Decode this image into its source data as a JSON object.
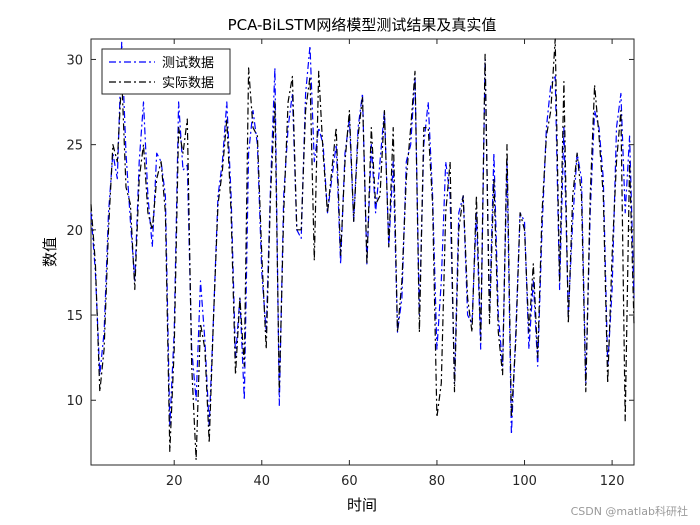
{
  "chart_data": {
    "type": "line",
    "title": "PCA-BiLSTM网络模型测试结果及真实值",
    "xlabel": "时间",
    "ylabel": "数值",
    "xlim": [
      1,
      125
    ],
    "ylim": [
      6.2,
      31.2
    ],
    "xticks": [
      20,
      40,
      60,
      80,
      100,
      120
    ],
    "yticks": [
      10,
      15,
      20,
      25,
      30
    ],
    "grid": false,
    "legend_position": "top-left",
    "x": [
      1,
      2,
      3,
      4,
      5,
      6,
      7,
      8,
      9,
      10,
      11,
      12,
      13,
      14,
      15,
      16,
      17,
      18,
      19,
      20,
      21,
      22,
      23,
      24,
      25,
      26,
      27,
      28,
      29,
      30,
      31,
      32,
      33,
      34,
      35,
      36,
      37,
      38,
      39,
      40,
      41,
      42,
      43,
      44,
      45,
      46,
      47,
      48,
      49,
      50,
      51,
      52,
      53,
      54,
      55,
      56,
      57,
      58,
      59,
      60,
      61,
      62,
      63,
      64,
      65,
      66,
      67,
      68,
      69,
      70,
      71,
      72,
      73,
      74,
      75,
      76,
      77,
      78,
      79,
      80,
      81,
      82,
      83,
      84,
      85,
      86,
      87,
      88,
      89,
      90,
      91,
      92,
      93,
      94,
      95,
      96,
      97,
      98,
      99,
      100,
      101,
      102,
      103,
      104,
      105,
      106,
      107,
      108,
      109,
      110,
      111,
      112,
      113,
      114,
      115,
      116,
      117,
      118,
      119,
      120,
      121,
      122,
      123,
      124,
      125
    ],
    "series": [
      {
        "name": "测试数据",
        "color": "#0000ff",
        "linestyle": "dash-dot",
        "values": [
          21,
          17.5,
          11.5,
          14,
          21,
          24.5,
          23,
          31,
          24.5,
          20.5,
          17,
          24,
          27.5,
          22,
          19,
          24.5,
          24,
          22,
          8.5,
          14,
          27.5,
          23.5,
          23.8,
          13,
          10,
          17,
          13.5,
          8.5,
          15,
          22,
          24,
          27.5,
          22,
          12.5,
          16,
          10,
          24.5,
          27,
          25,
          17.5,
          14,
          22.5,
          29.5,
          9.7,
          22,
          26,
          28,
          20,
          19.5,
          28,
          30.8,
          24,
          26,
          25,
          21,
          23,
          25,
          18,
          24.5,
          26.5,
          20.5,
          26,
          28,
          18,
          25,
          21,
          24,
          27,
          19,
          24,
          14,
          16,
          24,
          25,
          29,
          15,
          25,
          27.5,
          22,
          13,
          17,
          24,
          22,
          11,
          21,
          22,
          15,
          14.5,
          21,
          13,
          30,
          15,
          24.5,
          15,
          12,
          24,
          8,
          14,
          21,
          20.5,
          13,
          17,
          12,
          20,
          26,
          28.5,
          29,
          16.5,
          26,
          15,
          20.5,
          24.5,
          23,
          11,
          21,
          27,
          26,
          23,
          12,
          16.5,
          26,
          28,
          21,
          25.5,
          16
        ]
      },
      {
        "name": "实际数据",
        "color": "#000000",
        "linestyle": "dash-dot",
        "values": [
          21.5,
          18,
          10.5,
          13,
          20,
          25,
          24,
          29,
          22.5,
          21.5,
          16.5,
          23,
          25,
          21,
          20,
          23,
          24,
          21,
          7,
          13,
          26,
          24.5,
          26.5,
          12,
          6.5,
          14.5,
          13,
          7.5,
          15,
          21.5,
          23.5,
          26.5,
          21,
          11.5,
          16,
          12,
          29.5,
          26,
          25.5,
          18.5,
          13,
          22,
          27.5,
          10.5,
          21,
          27.5,
          29,
          20,
          20,
          27,
          29,
          18.2,
          29.3,
          24.5,
          21,
          23.5,
          26,
          18.5,
          24,
          27,
          20.5,
          25.5,
          27.8,
          18,
          26,
          21.5,
          22,
          27,
          19,
          26,
          14,
          17,
          23,
          26,
          29.3,
          14,
          26,
          26,
          21.5,
          9,
          11,
          21,
          24,
          10.5,
          20,
          22,
          16,
          14,
          22,
          13.5,
          30.3,
          14.5,
          23,
          14,
          11.5,
          25,
          9,
          13.5,
          21,
          20,
          14,
          18,
          12.5,
          21,
          25.5,
          27,
          31.2,
          17,
          28.7,
          14.5,
          22,
          24.5,
          22,
          10.5,
          22,
          28.5,
          25.5,
          22,
          11,
          18.5,
          24,
          27,
          8.8,
          24,
          14.5
        ]
      }
    ]
  },
  "watermark": "CSDN @matlab科研社"
}
